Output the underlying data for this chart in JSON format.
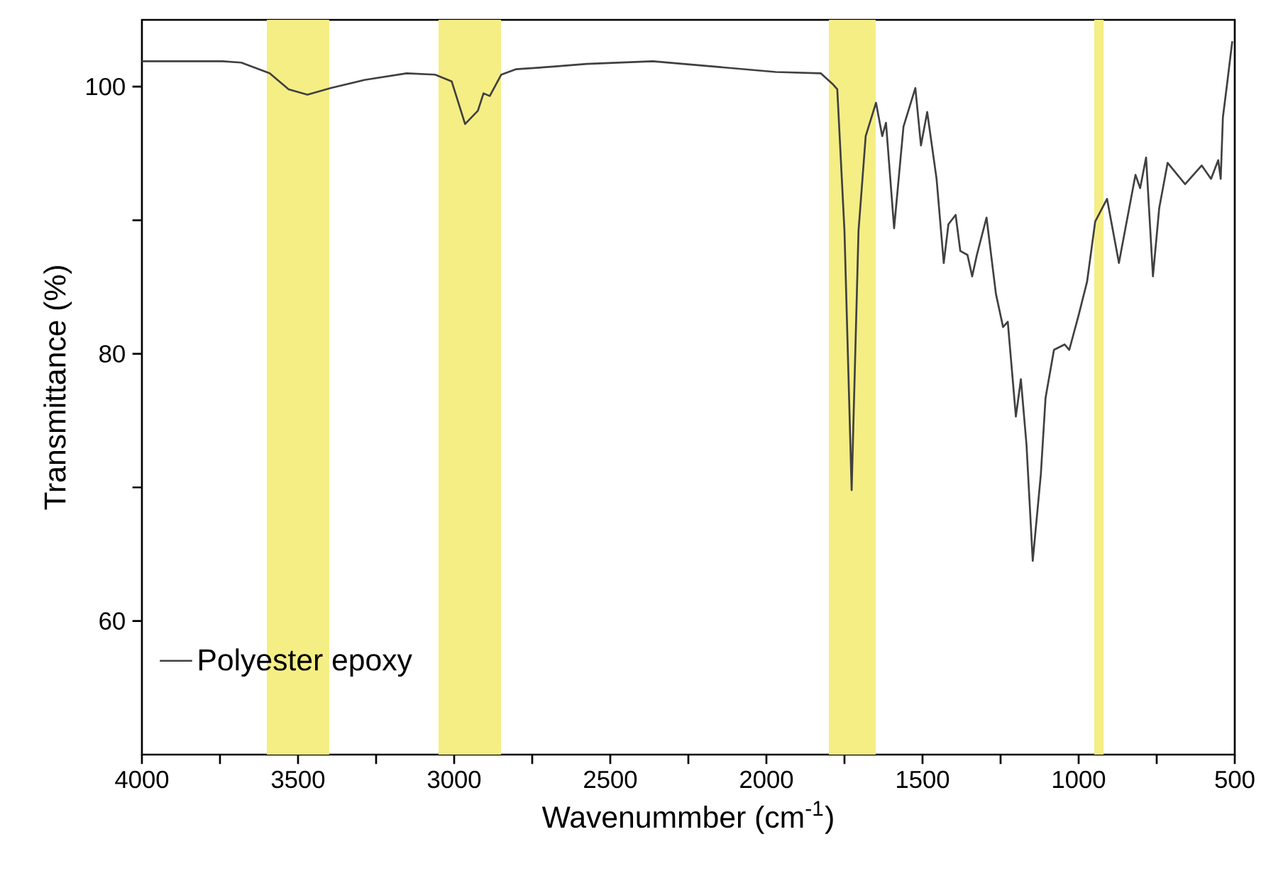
{
  "chart_data": {
    "type": "line",
    "xlabel": "Wavenummber (cm$^{-1}$)",
    "ylabel": "Transmittance (%)",
    "xlim": [
      4000,
      500
    ],
    "ylim": [
      50,
      105
    ],
    "xticks": [
      4000,
      {
        "value": 3750,
        "label": null
      },
      3500,
      {
        "value": 3250,
        "label": null
      },
      3000,
      {
        "value": 2750,
        "label": null
      },
      2500,
      {
        "value": 2250,
        "label": null
      },
      2000,
      {
        "value": 1750,
        "label": null
      },
      1500,
      {
        "value": 1250,
        "label": null
      },
      1000,
      {
        "value": 750,
        "label": null
      },
      500
    ],
    "yticks": [
      60,
      {
        "value": 70,
        "label": null
      },
      80,
      {
        "value": 90,
        "label": null
      },
      100
    ],
    "legend": "bottom left",
    "grid": false,
    "marker": "none",
    "line_style": "solid",
    "bands": [
      {
        "axis": "x",
        "from": 3600,
        "to": 3400,
        "color": "#f5ee85"
      },
      {
        "axis": "x",
        "from": 3050,
        "to": 2850,
        "color": "#f5ee85"
      },
      {
        "axis": "x",
        "from": 1800,
        "to": 1650,
        "color": "#f5ee85"
      },
      {
        "axis": "x",
        "from": 950,
        "to": 920,
        "color": "#f5ee85"
      }
    ],
    "series": [
      {
        "name": "Polyester epoxy",
        "color": "#404040",
        "x": [
          4000,
          3742,
          3682,
          3591,
          3530,
          3470,
          3394,
          3288,
          3152,
          3061,
          3008,
          2965,
          2924,
          2906,
          2886,
          2849,
          2803,
          2682,
          2576,
          2364,
          2167,
          1970,
          1826,
          1788,
          1773,
          1750,
          1727,
          1705,
          1682,
          1649,
          1629,
          1617,
          1591,
          1561,
          1523,
          1505,
          1485,
          1455,
          1432,
          1417,
          1394,
          1379,
          1356,
          1341,
          1326,
          1295,
          1265,
          1242,
          1227,
          1201,
          1185,
          1167,
          1147,
          1121,
          1106,
          1079,
          1045,
          1030,
          1000,
          973,
          947,
          909,
          871,
          818,
          803,
          784,
          762,
          742,
          715,
          659,
          606,
          576,
          553,
          545,
          538,
          523,
          508
        ],
        "values": [
          101.9,
          101.9,
          101.8,
          101.0,
          99.8,
          99.4,
          99.9,
          100.5,
          101.0,
          100.9,
          100.4,
          97.2,
          98.2,
          99.5,
          99.3,
          100.9,
          101.3,
          101.5,
          101.7,
          101.9,
          101.5,
          101.1,
          101.0,
          100.2,
          99.8,
          89.2,
          69.8,
          89.2,
          96.3,
          98.8,
          96.3,
          97.3,
          89.4,
          97.0,
          99.9,
          95.6,
          98.1,
          93.1,
          86.8,
          89.7,
          90.4,
          87.7,
          87.4,
          85.8,
          87.4,
          90.2,
          84.5,
          82.0,
          82.4,
          75.3,
          78.1,
          73.2,
          64.5,
          71.0,
          76.7,
          80.3,
          80.7,
          80.3,
          82.9,
          85.4,
          89.9,
          91.6,
          86.8,
          93.4,
          92.4,
          94.7,
          85.8,
          90.9,
          94.3,
          92.7,
          94.1,
          93.1,
          94.5,
          93.1,
          97.7,
          100.5,
          103.4
        ]
      }
    ]
  }
}
